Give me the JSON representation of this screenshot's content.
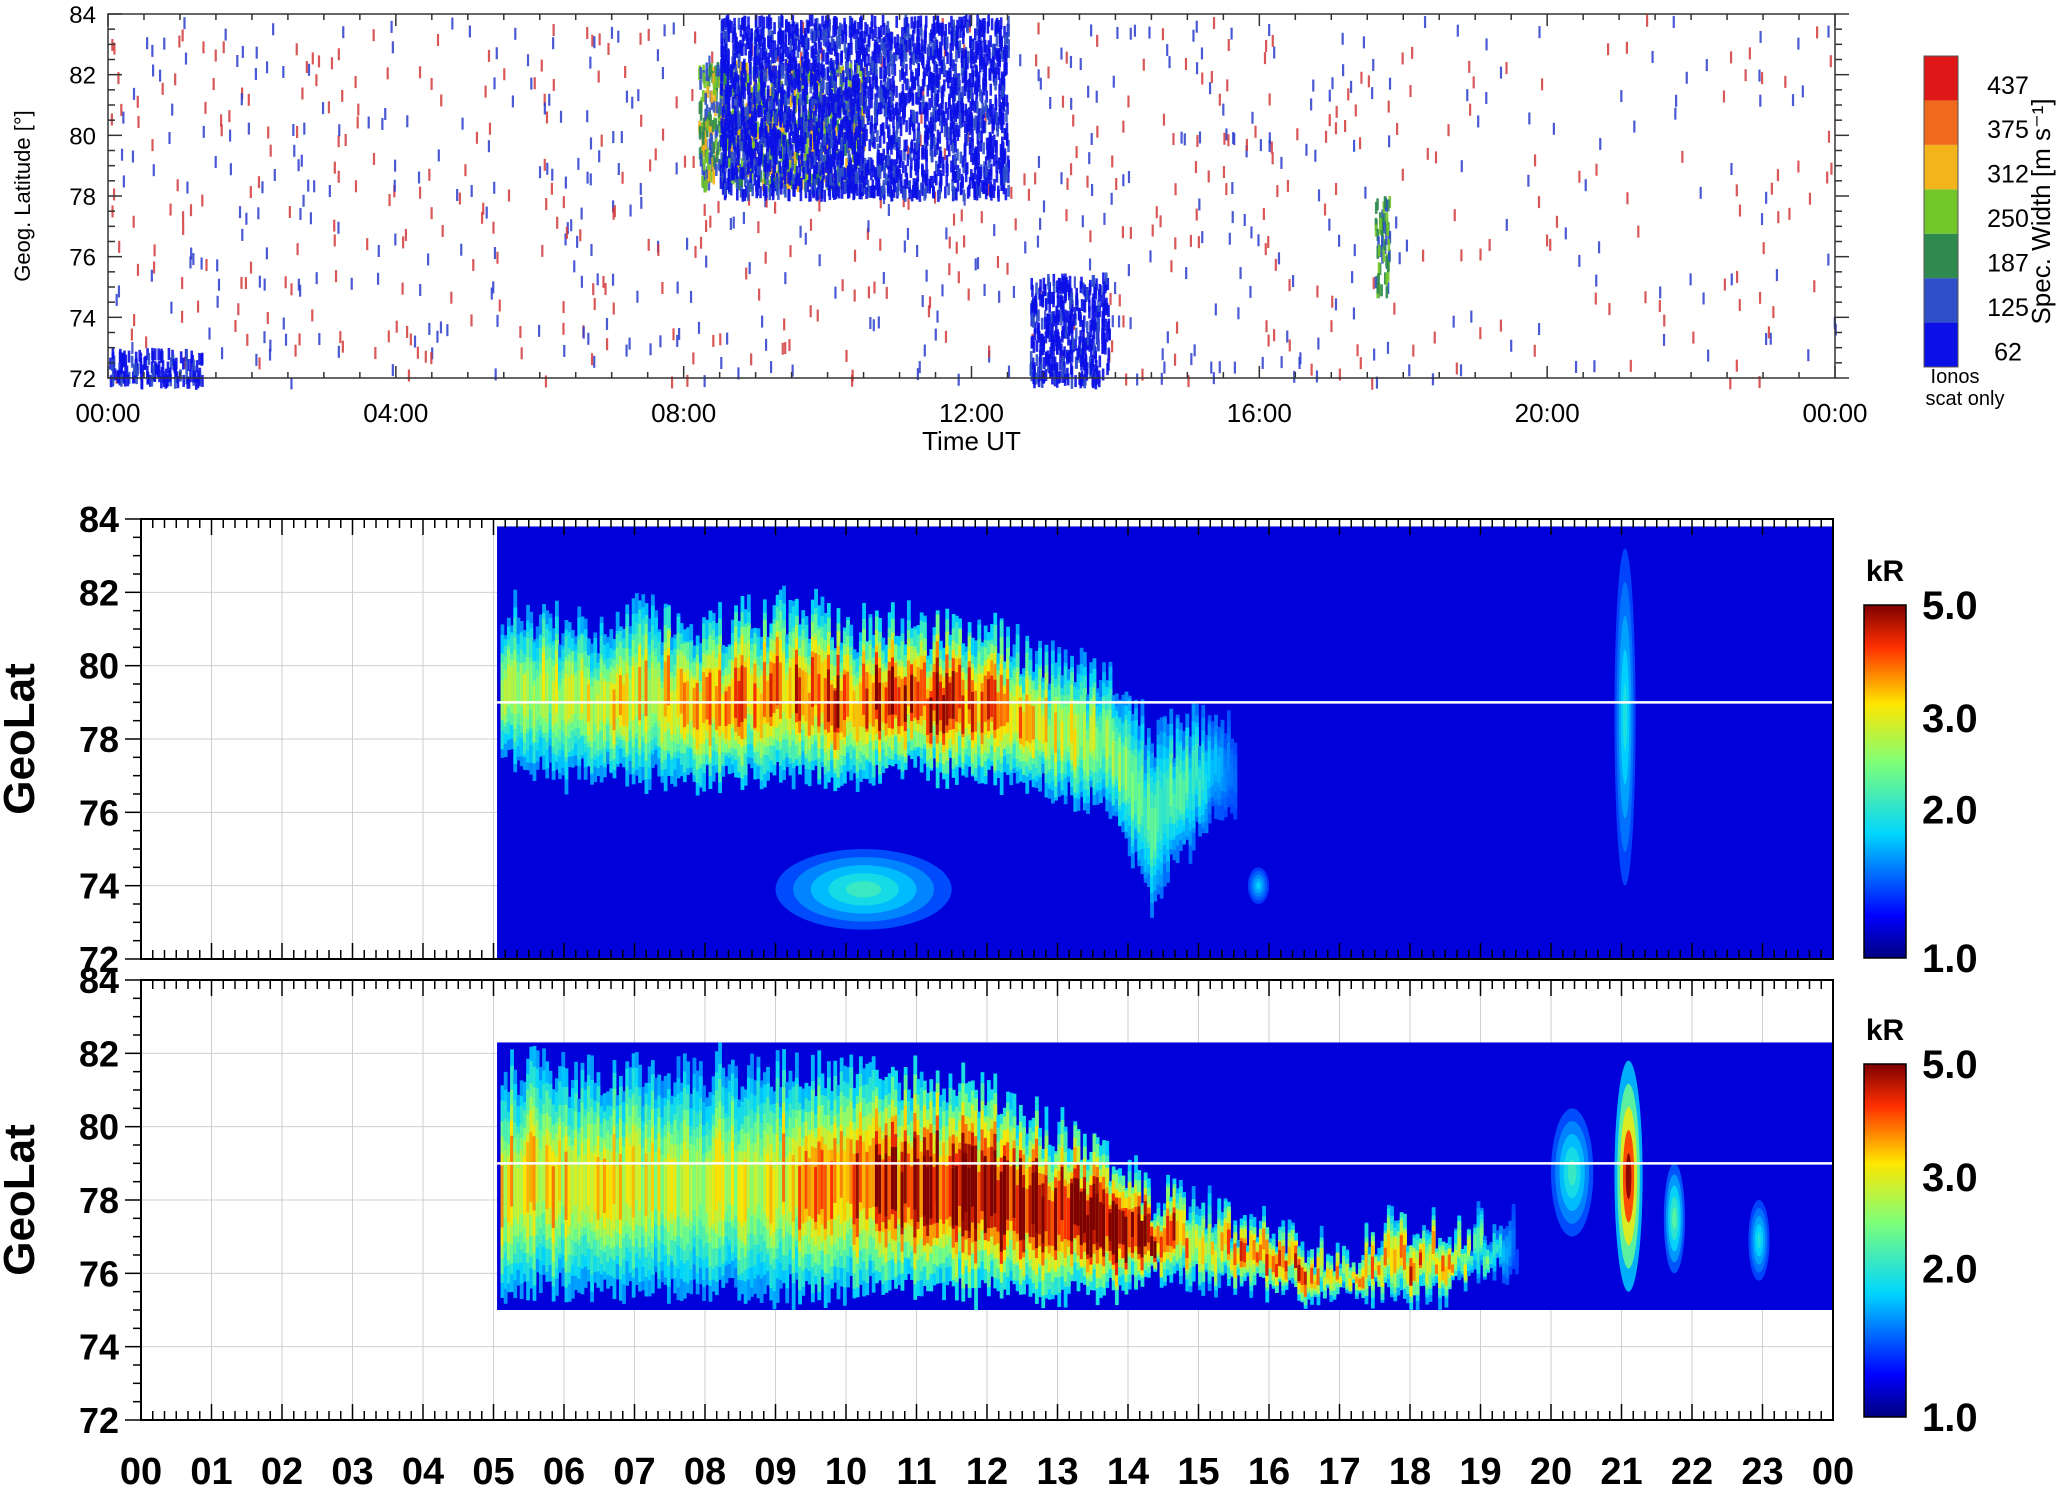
{
  "chart_data": [
    {
      "type": "heatmap",
      "title": "",
      "xlabel": "Time UT",
      "ylabel": "Geog. Latitude [°]",
      "x_ticks": [
        "00:00",
        "04:00",
        "08:00",
        "12:00",
        "16:00",
        "20:00",
        "00:00"
      ],
      "x_range_hours": [
        0,
        24
      ],
      "y_ticks": [
        "72",
        "74",
        "76",
        "78",
        "80",
        "82",
        "84"
      ],
      "ylim": [
        72,
        84
      ],
      "colorbar": {
        "label": "Spec. Width [m s⁻¹]",
        "labels": [
          "437",
          "375",
          "312",
          "250",
          "187",
          "125",
          "62"
        ],
        "bottom_label_line1": "Ionos",
        "bottom_label_line2": "scat only",
        "colors": [
          "#0a10e6",
          "#2f4fc9",
          "#2e8a4f",
          "#73c62a",
          "#f3b31a",
          "#ef6a1a",
          "#e01717"
        ]
      },
      "features": [
        {
          "x": [
            8.2,
            10.5
          ],
          "y": [
            78.5,
            82.5
          ],
          "description_level": "spectral width 125-312"
        },
        {
          "x": [
            8.5,
            12.5
          ],
          "y": [
            78.2,
            84.0
          ],
          "description_level": "low width"
        },
        {
          "x": [
            12.8,
            13.9
          ],
          "y": [
            72.0,
            75.5
          ],
          "description_level": "low width"
        },
        {
          "x": [
            17.6,
            17.8
          ],
          "y": [
            75.0,
            78.0
          ],
          "description_level": "125-187"
        },
        {
          "x": [
            0.0,
            1.3
          ],
          "y": [
            72.0,
            73.0
          ],
          "description_level": "low width"
        }
      ]
    },
    {
      "type": "heatmap",
      "title": "",
      "xlabel": "",
      "ylabel": "GeoLat",
      "y_ticks": [
        "72",
        "74",
        "76",
        "78",
        "80",
        "82",
        "84"
      ],
      "ylim": [
        72,
        84
      ],
      "x_range_hours": [
        0,
        24
      ],
      "data_window": {
        "x": [
          5.05,
          24.0
        ],
        "y": [
          72.0,
          83.8
        ]
      },
      "colorbar": {
        "unit": "kR",
        "unit_color": "#ff2a2a",
        "labels": [
          "5.0",
          "3.0",
          "2.0",
          "1.0"
        ]
      },
      "reference_line_lat": 79.0,
      "emission_band": [
        {
          "t": 5.1,
          "lo": 77.5,
          "hi": 81.5,
          "peak": 0.45
        },
        {
          "t": 6.0,
          "lo": 77.0,
          "hi": 81.0,
          "peak": 0.55
        },
        {
          "t": 7.0,
          "lo": 77.0,
          "hi": 81.3,
          "peak": 0.6
        },
        {
          "t": 8.0,
          "lo": 76.8,
          "hi": 81.0,
          "peak": 0.65
        },
        {
          "t": 9.0,
          "lo": 77.0,
          "hi": 81.5,
          "peak": 0.75
        },
        {
          "t": 10.0,
          "lo": 77.0,
          "hi": 81.2,
          "peak": 0.8
        },
        {
          "t": 11.0,
          "lo": 77.2,
          "hi": 81.0,
          "peak": 0.9
        },
        {
          "t": 12.0,
          "lo": 77.0,
          "hi": 81.0,
          "peak": 0.75
        },
        {
          "t": 13.0,
          "lo": 76.5,
          "hi": 80.0,
          "peak": 0.55
        },
        {
          "t": 13.8,
          "lo": 76.0,
          "hi": 79.5,
          "peak": 0.45
        },
        {
          "t": 14.3,
          "lo": 73.5,
          "hi": 78.0,
          "peak": 0.35
        },
        {
          "t": 15.0,
          "lo": 75.5,
          "hi": 78.5,
          "peak": 0.3
        },
        {
          "t": 15.5,
          "lo": 76.0,
          "hi": 78.0,
          "peak": 0.05
        }
      ],
      "extra_features": [
        {
          "x": [
            9.0,
            11.5
          ],
          "y": [
            72.8,
            75.0
          ],
          "peak": 0.3
        },
        {
          "x": [
            20.9,
            21.2
          ],
          "y": [
            74.0,
            83.2
          ],
          "peak": 0.25
        },
        {
          "x": [
            15.7,
            16.0
          ],
          "y": [
            73.5,
            74.5
          ],
          "peak": 0.2
        }
      ]
    },
    {
      "type": "heatmap",
      "title": "",
      "xlabel": "",
      "ylabel": "GeoLat",
      "x_ticks": [
        "00",
        "01",
        "02",
        "03",
        "04",
        "05",
        "06",
        "07",
        "08",
        "09",
        "10",
        "11",
        "12",
        "13",
        "14",
        "15",
        "16",
        "17",
        "18",
        "19",
        "20",
        "21",
        "22",
        "23",
        "00"
      ],
      "y_ticks": [
        "72",
        "74",
        "76",
        "78",
        "80",
        "82",
        "84"
      ],
      "ylim": [
        72,
        84
      ],
      "x_range_hours": [
        0,
        24
      ],
      "data_window": {
        "x": [
          5.05,
          24.0
        ],
        "y": [
          75.0,
          82.3
        ]
      },
      "colorbar": {
        "unit": "kR",
        "unit_color": "#33dd33",
        "labels": [
          "5.0",
          "3.0",
          "2.0",
          "1.0"
        ]
      },
      "reference_line_lat": 79.0,
      "emission_band": [
        {
          "t": 5.1,
          "lo": 75.5,
          "hi": 81.5,
          "peak": 0.6
        },
        {
          "t": 6.0,
          "lo": 75.5,
          "hi": 81.5,
          "peak": 0.6
        },
        {
          "t": 7.0,
          "lo": 75.5,
          "hi": 81.5,
          "peak": 0.55
        },
        {
          "t": 8.0,
          "lo": 75.5,
          "hi": 81.5,
          "peak": 0.5
        },
        {
          "t": 9.0,
          "lo": 75.5,
          "hi": 81.5,
          "peak": 0.6
        },
        {
          "t": 10.0,
          "lo": 75.5,
          "hi": 81.5,
          "peak": 0.8
        },
        {
          "t": 11.0,
          "lo": 75.5,
          "hi": 81.3,
          "peak": 0.9
        },
        {
          "t": 12.0,
          "lo": 75.5,
          "hi": 81.0,
          "peak": 0.95
        },
        {
          "t": 13.0,
          "lo": 75.5,
          "hi": 80.0,
          "peak": 1.0
        },
        {
          "t": 13.8,
          "lo": 75.5,
          "hi": 79.0,
          "peak": 1.0
        },
        {
          "t": 14.3,
          "lo": 75.8,
          "hi": 78.0,
          "peak": 1.0
        },
        {
          "t": 15.0,
          "lo": 75.8,
          "hi": 78.0,
          "peak": 0.55
        },
        {
          "t": 16.0,
          "lo": 75.5,
          "hi": 77.0,
          "peak": 0.85
        },
        {
          "t": 17.0,
          "lo": 75.5,
          "hi": 76.5,
          "peak": 0.6
        },
        {
          "t": 18.0,
          "lo": 75.5,
          "hi": 77.5,
          "peak": 0.75
        },
        {
          "t": 18.6,
          "lo": 75.5,
          "hi": 77.0,
          "peak": 0.6
        },
        {
          "t": 19.2,
          "lo": 76.0,
          "hi": 77.5,
          "peak": 0.3
        },
        {
          "t": 19.5,
          "lo": 76.0,
          "hi": 77.0,
          "peak": 0.0
        }
      ],
      "extra_features": [
        {
          "x": [
            20.9,
            21.3
          ],
          "y": [
            75.5,
            81.8
          ],
          "peak": 0.9
        },
        {
          "x": [
            20.0,
            20.6
          ],
          "y": [
            77.0,
            80.5
          ],
          "peak": 0.3
        },
        {
          "x": [
            21.6,
            21.9
          ],
          "y": [
            76.0,
            79.0
          ],
          "peak": 0.35
        },
        {
          "x": [
            22.8,
            23.1
          ],
          "y": [
            75.8,
            78.0
          ],
          "peak": 0.25
        }
      ]
    }
  ]
}
